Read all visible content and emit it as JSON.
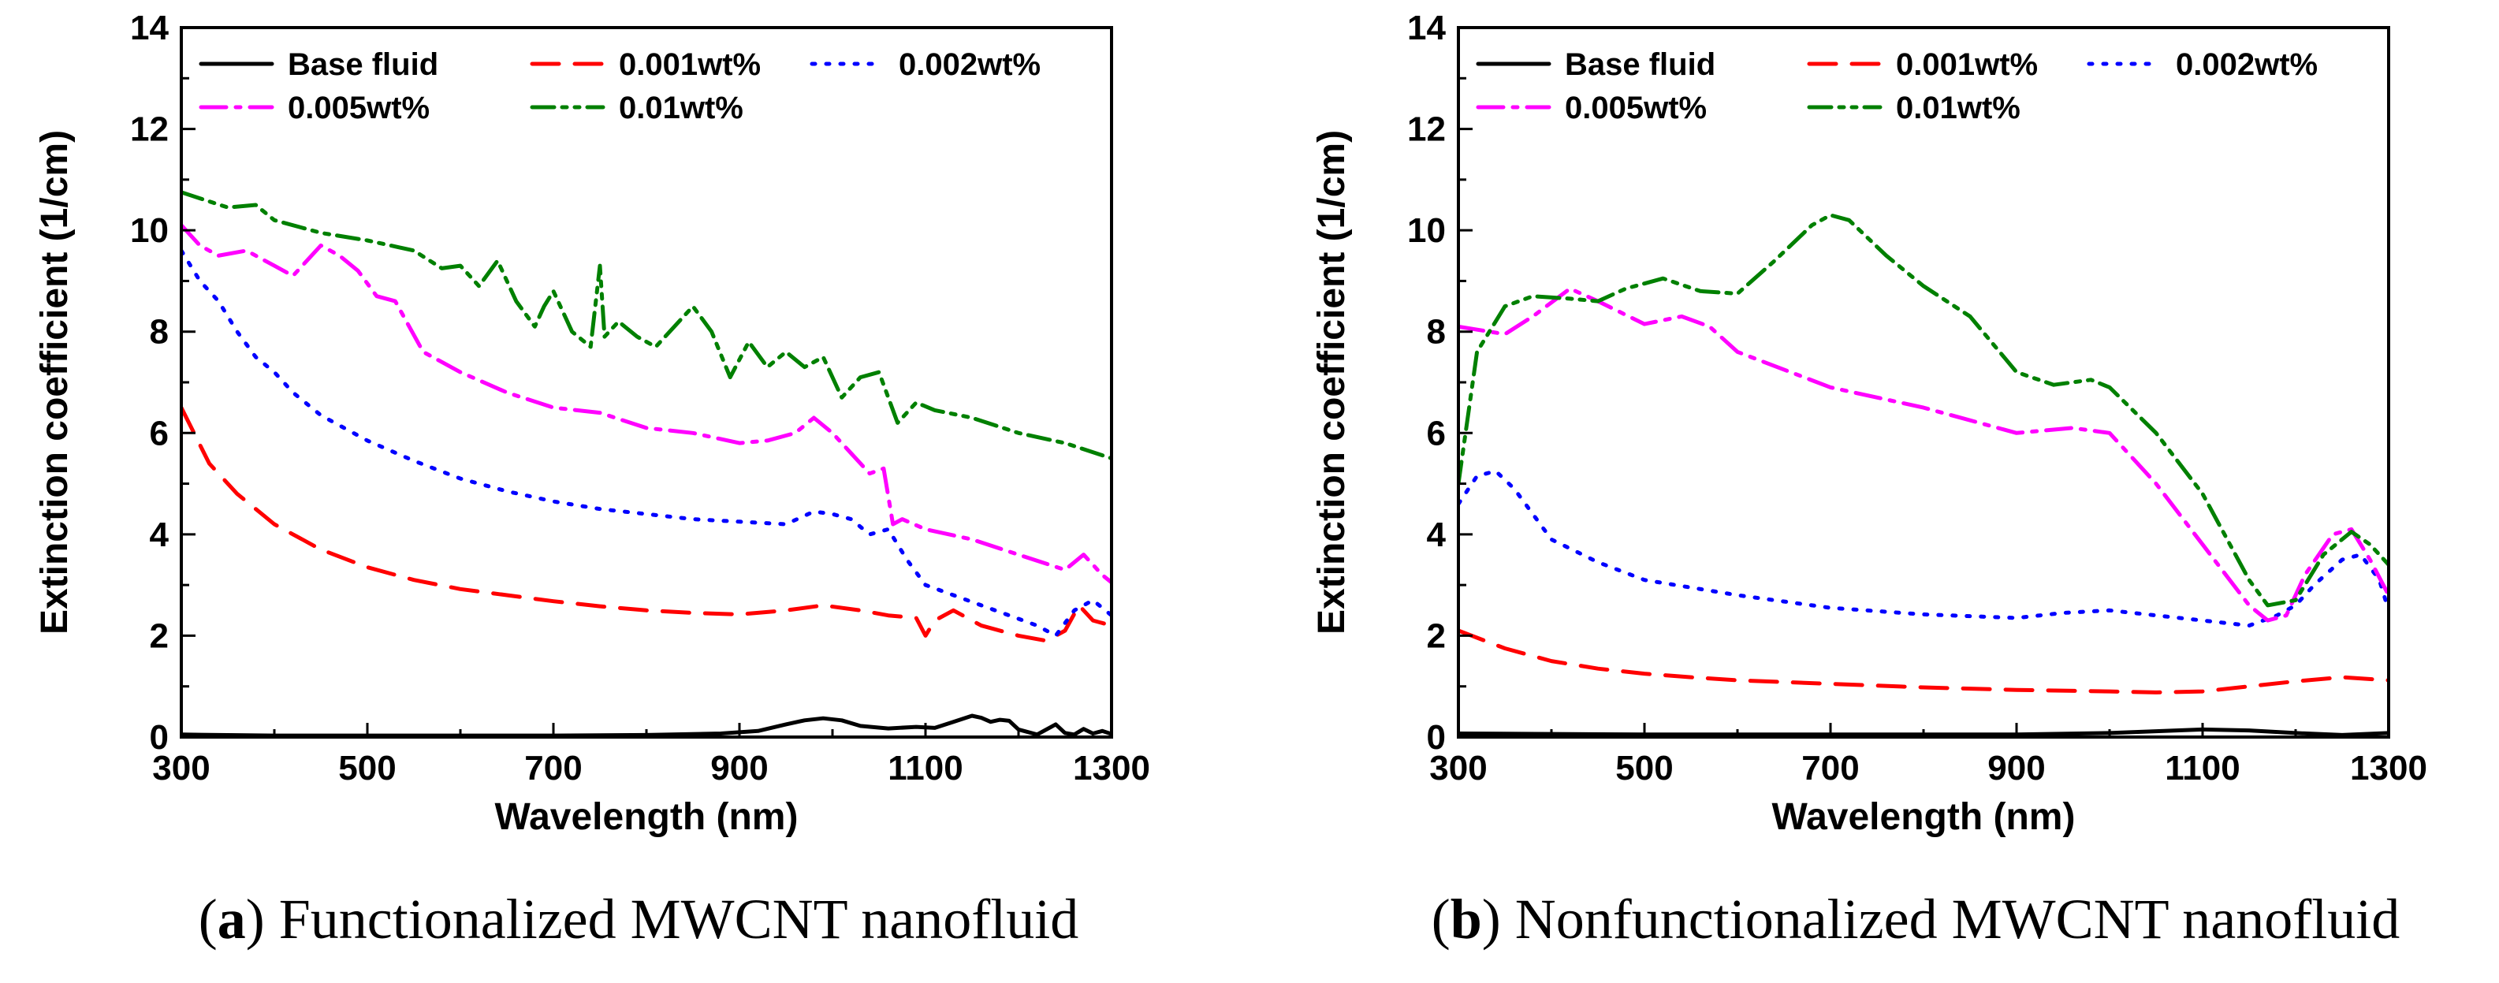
{
  "chart_data": [
    {
      "type": "line",
      "panel_letter": "a",
      "caption": "Functionalized MWCNT nanofluid",
      "xlabel": "Wavelength (nm)",
      "ylabel": "Extinction coefficient (1/cm)",
      "xlim": [
        300,
        1300
      ],
      "ylim": [
        0,
        14
      ],
      "xticks": [
        300,
        500,
        700,
        900,
        1100,
        1300
      ],
      "yticks": [
        0,
        2,
        4,
        6,
        8,
        10,
        12,
        14
      ],
      "legend_position": "top-left",
      "series": [
        {
          "name": "Base fluid",
          "color": "#000000",
          "dash": "solid",
          "x": [
            300,
            400,
            500,
            600,
            700,
            800,
            880,
            920,
            950,
            970,
            990,
            1010,
            1030,
            1060,
            1090,
            1110,
            1130,
            1150,
            1160,
            1170,
            1180,
            1190,
            1200,
            1220,
            1240,
            1250,
            1260,
            1270,
            1280,
            1290,
            1300
          ],
          "y": [
            0.05,
            0.03,
            0.03,
            0.03,
            0.03,
            0.04,
            0.07,
            0.12,
            0.25,
            0.33,
            0.37,
            0.33,
            0.22,
            0.17,
            0.2,
            0.18,
            0.3,
            0.42,
            0.38,
            0.3,
            0.34,
            0.32,
            0.15,
            0.05,
            0.25,
            0.08,
            0.05,
            0.16,
            0.07,
            0.12,
            0.06
          ]
        },
        {
          "name": "0.001wt%",
          "color": "#ff0000",
          "dash": "dashed",
          "x": [
            300,
            330,
            360,
            400,
            450,
            500,
            550,
            600,
            650,
            700,
            750,
            800,
            850,
            900,
            950,
            990,
            1030,
            1060,
            1090,
            1100,
            1110,
            1130,
            1160,
            1200,
            1230,
            1250,
            1265,
            1280,
            1300
          ],
          "y": [
            6.5,
            5.4,
            4.8,
            4.2,
            3.7,
            3.35,
            3.1,
            2.92,
            2.8,
            2.68,
            2.58,
            2.5,
            2.45,
            2.42,
            2.5,
            2.6,
            2.5,
            2.4,
            2.35,
            2.0,
            2.3,
            2.5,
            2.2,
            2.0,
            1.9,
            2.1,
            2.6,
            2.3,
            2.2
          ]
        },
        {
          "name": "0.002wt%",
          "color": "#0000ff",
          "dash": "dotted",
          "x": [
            300,
            320,
            340,
            360,
            380,
            400,
            420,
            450,
            500,
            550,
            600,
            650,
            700,
            750,
            800,
            850,
            900,
            950,
            980,
            1000,
            1020,
            1040,
            1060,
            1080,
            1100,
            1130,
            1160,
            1190,
            1220,
            1240,
            1260,
            1280,
            1300
          ],
          "y": [
            9.6,
            9.0,
            8.6,
            8.0,
            7.5,
            7.2,
            6.8,
            6.35,
            5.85,
            5.45,
            5.1,
            4.85,
            4.65,
            4.5,
            4.4,
            4.3,
            4.25,
            4.2,
            4.45,
            4.4,
            4.3,
            4.0,
            4.1,
            3.5,
            3.0,
            2.8,
            2.6,
            2.4,
            2.2,
            2.0,
            2.5,
            2.7,
            2.4
          ]
        },
        {
          "name": "0.005wt%",
          "color": "#ff00ff",
          "dash": "dashdot",
          "x": [
            300,
            320,
            340,
            370,
            400,
            420,
            450,
            470,
            490,
            510,
            530,
            560,
            600,
            650,
            700,
            750,
            800,
            850,
            900,
            930,
            960,
            980,
            1000,
            1020,
            1040,
            1055,
            1065,
            1075,
            1100,
            1150,
            1200,
            1250,
            1270,
            1290,
            1300
          ],
          "y": [
            10.1,
            9.7,
            9.5,
            9.6,
            9.3,
            9.1,
            9.7,
            9.5,
            9.2,
            8.7,
            8.6,
            7.6,
            7.2,
            6.8,
            6.5,
            6.4,
            6.1,
            6.0,
            5.8,
            5.85,
            6.0,
            6.3,
            6.0,
            5.6,
            5.2,
            5.3,
            4.2,
            4.3,
            4.1,
            3.9,
            3.6,
            3.3,
            3.6,
            3.2,
            3.05
          ]
        },
        {
          "name": "0.01wt%",
          "color": "#008000",
          "dash": "dashdotdot",
          "x": [
            300,
            350,
            380,
            400,
            450,
            500,
            550,
            580,
            600,
            620,
            640,
            660,
            680,
            690,
            700,
            720,
            740,
            750,
            755,
            770,
            790,
            810,
            830,
            850,
            870,
            890,
            910,
            930,
            950,
            970,
            990,
            1010,
            1030,
            1050,
            1070,
            1090,
            1110,
            1150,
            1200,
            1250,
            1300
          ],
          "y": [
            10.75,
            10.45,
            10.5,
            10.2,
            9.95,
            9.8,
            9.6,
            9.25,
            9.3,
            8.9,
            9.4,
            8.6,
            8.1,
            8.5,
            8.8,
            8.0,
            7.7,
            9.3,
            7.9,
            8.2,
            7.9,
            7.7,
            8.1,
            8.5,
            8.0,
            7.1,
            7.8,
            7.3,
            7.6,
            7.3,
            7.5,
            6.7,
            7.1,
            7.2,
            6.2,
            6.6,
            6.45,
            6.3,
            6.0,
            5.8,
            5.5
          ]
        }
      ]
    },
    {
      "type": "line",
      "panel_letter": "b",
      "caption": "Nonfunctionalized MWCNT nanofluid",
      "xlabel": "Wavelength (nm)",
      "ylabel": "Extinction coefficient (1/cm)",
      "xlim": [
        300,
        1300
      ],
      "ylim": [
        0,
        14
      ],
      "xticks": [
        300,
        500,
        700,
        900,
        1100,
        1300
      ],
      "yticks": [
        0,
        2,
        4,
        6,
        8,
        10,
        12,
        14
      ],
      "legend_position": "top-left",
      "series": [
        {
          "name": "Base fluid",
          "color": "#000000",
          "dash": "solid",
          "x": [
            300,
            500,
            700,
            900,
            1000,
            1100,
            1150,
            1200,
            1250,
            1300
          ],
          "y": [
            0.07,
            0.05,
            0.05,
            0.05,
            0.08,
            0.15,
            0.13,
            0.08,
            0.04,
            0.08
          ]
        },
        {
          "name": "0.001wt%",
          "color": "#ff0000",
          "dash": "dashed",
          "x": [
            300,
            350,
            400,
            450,
            500,
            550,
            600,
            700,
            800,
            900,
            1000,
            1050,
            1100,
            1150,
            1200,
            1250,
            1300
          ],
          "y": [
            2.1,
            1.75,
            1.5,
            1.35,
            1.25,
            1.18,
            1.12,
            1.05,
            0.98,
            0.93,
            0.9,
            0.88,
            0.9,
            1.0,
            1.1,
            1.18,
            1.12
          ]
        },
        {
          "name": "0.002wt%",
          "color": "#0000ff",
          "dash": "dotted",
          "x": [
            300,
            320,
            340,
            360,
            400,
            450,
            500,
            600,
            700,
            800,
            900,
            950,
            1000,
            1050,
            1100,
            1150,
            1180,
            1200,
            1220,
            1250,
            1270,
            1290,
            1300
          ],
          "y": [
            4.6,
            5.15,
            5.25,
            4.9,
            3.9,
            3.45,
            3.1,
            2.8,
            2.55,
            2.42,
            2.35,
            2.45,
            2.5,
            2.4,
            2.3,
            2.2,
            2.4,
            2.6,
            3.0,
            3.5,
            3.6,
            3.1,
            2.5
          ]
        },
        {
          "name": "0.005wt%",
          "color": "#ff00ff",
          "dash": "dashdot",
          "x": [
            300,
            350,
            380,
            420,
            450,
            500,
            540,
            570,
            600,
            700,
            800,
            900,
            960,
            1000,
            1050,
            1100,
            1150,
            1170,
            1190,
            1210,
            1240,
            1260,
            1280,
            1300
          ],
          "y": [
            8.1,
            7.95,
            8.3,
            8.85,
            8.6,
            8.15,
            8.3,
            8.1,
            7.6,
            6.9,
            6.5,
            6.0,
            6.1,
            6.0,
            5.0,
            3.8,
            2.6,
            2.3,
            2.4,
            3.2,
            4.0,
            4.1,
            3.5,
            2.8
          ]
        },
        {
          "name": "0.01wt%",
          "color": "#008000",
          "dash": "dashdotdot",
          "x": [
            300,
            320,
            350,
            380,
            420,
            450,
            480,
            520,
            560,
            600,
            640,
            680,
            700,
            720,
            760,
            800,
            850,
            900,
            940,
            980,
            1000,
            1050,
            1100,
            1150,
            1170,
            1200,
            1230,
            1260,
            1280,
            1300
          ],
          "y": [
            5.0,
            7.6,
            8.5,
            8.7,
            8.65,
            8.6,
            8.85,
            9.05,
            8.8,
            8.75,
            9.4,
            10.1,
            10.3,
            10.2,
            9.5,
            8.9,
            8.3,
            7.2,
            6.95,
            7.05,
            6.9,
            6.0,
            4.8,
            3.1,
            2.6,
            2.7,
            3.6,
            4.05,
            3.8,
            3.4
          ]
        }
      ]
    }
  ]
}
